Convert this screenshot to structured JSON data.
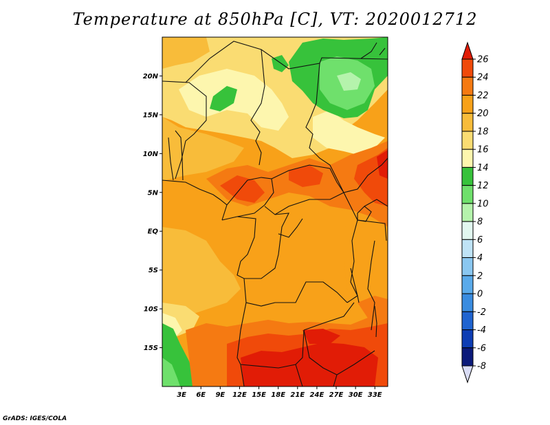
{
  "title": "Temperature at 850hPa [C], VT: 2020012712",
  "credit": "GrADS: IGES/COLA",
  "map": {
    "lat_range": [
      -20,
      25
    ],
    "lon_range": [
      0,
      35
    ],
    "lat_ticks": [
      {
        "lat": 20,
        "label": "20N"
      },
      {
        "lat": 15,
        "label": "15N"
      },
      {
        "lat": 10,
        "label": "10N"
      },
      {
        "lat": 5,
        "label": "5N"
      },
      {
        "lat": 0,
        "label": "EQ"
      },
      {
        "lat": -5,
        "label": "5S"
      },
      {
        "lat": -10,
        "label": "10S"
      },
      {
        "lat": -15,
        "label": "15S"
      }
    ],
    "lon_ticks": [
      {
        "lon": 3,
        "label": "3E"
      },
      {
        "lon": 6,
        "label": "6E"
      },
      {
        "lon": 9,
        "label": "9E"
      },
      {
        "lon": 12,
        "label": "12E"
      },
      {
        "lon": 15,
        "label": "15E"
      },
      {
        "lon": 18,
        "label": "18E"
      },
      {
        "lon": 21,
        "label": "21E"
      },
      {
        "lon": 24,
        "label": "24E"
      },
      {
        "lon": 27,
        "label": "27E"
      },
      {
        "lon": 30,
        "label": "30E"
      },
      {
        "lon": 33,
        "label": "33E"
      }
    ]
  },
  "colorbar": {
    "levels": [
      "26",
      "24",
      "22",
      "20",
      "18",
      "16",
      "14",
      "12",
      "10",
      "8",
      "6",
      "4",
      "2",
      "0",
      "-2",
      "-4",
      "-6",
      "-8"
    ],
    "colors": [
      "#e11c06",
      "#f04a0a",
      "#f57a12",
      "#f8a119",
      "#f8bc3a",
      "#fadc72",
      "#fdf6ae",
      "#37c23b",
      "#6fe06c",
      "#b5f3ac",
      "#e2f8f0",
      "#bfe3f6",
      "#8ac7f0",
      "#5aaaea",
      "#3a8ce0",
      "#2064d0",
      "#0d3db4",
      "#0b1a7a",
      "#d9dcf5"
    ]
  },
  "field_colors": {
    "t26": "#e11c06",
    "t24": "#f04a0a",
    "t22": "#f57a12",
    "t20": "#f8a119",
    "t18": "#f8bc3a",
    "t16": "#fadc72",
    "t14": "#fdf6ae",
    "t12": "#37c23b",
    "t10": "#6fe06c",
    "t8": "#b5f3ac"
  }
}
